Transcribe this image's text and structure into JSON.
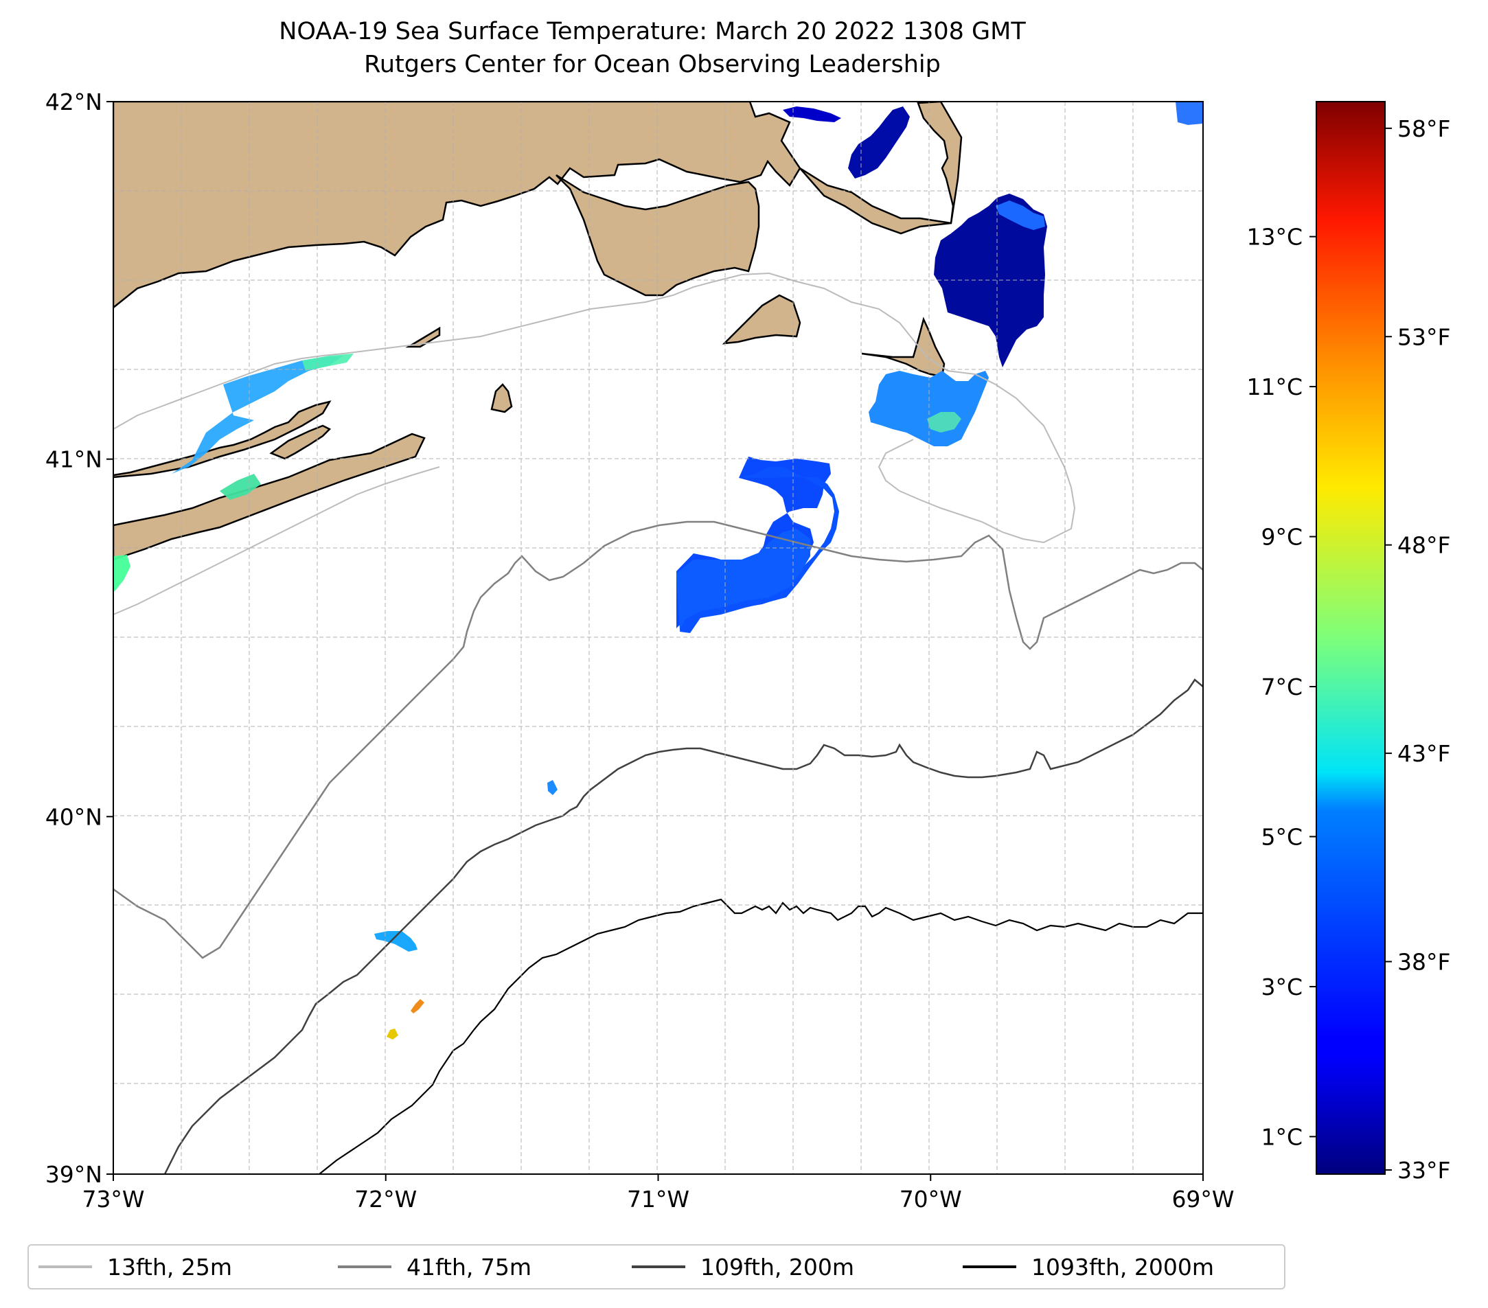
{
  "title": {
    "line1": "NOAA-19 Sea Surface Temperature: March 20 2022 1308 GMT",
    "line2": "Rutgers Center for Ocean Observing Leadership"
  },
  "map": {
    "lon_range": [
      -73,
      -69
    ],
    "lat_range": [
      39,
      42
    ],
    "x_ticks": [
      {
        "lon": -73,
        "label": "73°W"
      },
      {
        "lon": -72,
        "label": "72°W"
      },
      {
        "lon": -71,
        "label": "71°W"
      },
      {
        "lon": -70,
        "label": "70°W"
      },
      {
        "lon": -69,
        "label": "69°W"
      }
    ],
    "y_ticks": [
      {
        "lat": 42,
        "label": "42°N"
      },
      {
        "lat": 41,
        "label": "41°N"
      },
      {
        "lat": 40,
        "label": "40°N"
      },
      {
        "lat": 39,
        "label": "39°N"
      }
    ],
    "gridlines": true,
    "land_color": "#d2b48c",
    "water_color": "#ffffff"
  },
  "colorbar": {
    "colormap": "jet",
    "range_c": [
      0.5,
      14.8
    ],
    "celsius_ticks": [
      {
        "value": 1,
        "label": "1°C"
      },
      {
        "value": 3,
        "label": "3°C"
      },
      {
        "value": 5,
        "label": "5°C"
      },
      {
        "value": 7,
        "label": "7°C"
      },
      {
        "value": 9,
        "label": "9°C"
      },
      {
        "value": 11,
        "label": "11°C"
      },
      {
        "value": 13,
        "label": "13°C"
      }
    ],
    "fahrenheit_ticks": [
      {
        "value": 33,
        "label": "33°F"
      },
      {
        "value": 38,
        "label": "38°F"
      },
      {
        "value": 43,
        "label": "43°F"
      },
      {
        "value": 48,
        "label": "48°F"
      },
      {
        "value": 53,
        "label": "53°F"
      },
      {
        "value": 58,
        "label": "58°F"
      }
    ]
  },
  "legend": {
    "items": [
      {
        "label": "13fth, 25m",
        "color": "#bbbbbb"
      },
      {
        "label": "41fth, 75m",
        "color": "#808080"
      },
      {
        "label": "109fth, 200m",
        "color": "#404040"
      },
      {
        "label": "1093fth, 2000m",
        "color": "#000000"
      }
    ]
  },
  "sst_patches": [
    {
      "region": "long-island-sound",
      "temp_c": 5.5
    },
    {
      "region": "southern-new-england-shelf-center",
      "temp_c": 3.5
    },
    {
      "region": "nantucket-shoals",
      "temp_c": 4.5
    },
    {
      "region": "great-south-channel",
      "temp_c": 1.0
    },
    {
      "region": "cape-cod-bay",
      "temp_c": 1.5
    },
    {
      "region": "shelf-break-fragment",
      "temp_c": 5.2
    },
    {
      "region": "slope-sea-fragment-a",
      "temp_c": 10.5
    },
    {
      "region": "slope-sea-fragment-b",
      "temp_c": 10.0
    }
  ]
}
